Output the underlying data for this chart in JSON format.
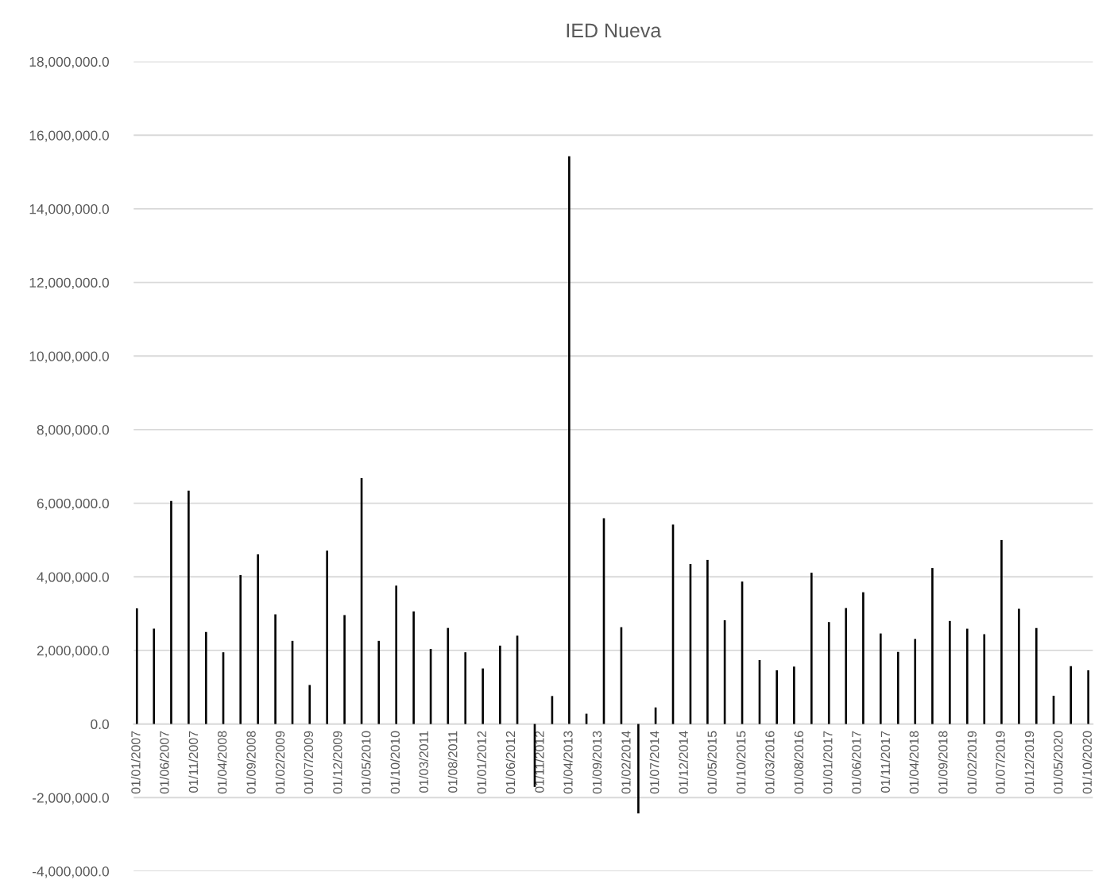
{
  "chart_data": {
    "type": "bar",
    "title": "IED Nueva",
    "x": [
      "2007-01",
      "2007-04",
      "2007-07",
      "2007-10",
      "2008-01",
      "2008-04",
      "2008-07",
      "2008-10",
      "2009-01",
      "2009-04",
      "2009-07",
      "2009-10",
      "2010-01",
      "2010-04",
      "2010-07",
      "2010-10",
      "2011-01",
      "2011-04",
      "2011-07",
      "2011-10",
      "2012-01",
      "2012-04",
      "2012-07",
      "2012-10",
      "2013-01",
      "2013-04",
      "2013-07",
      "2013-10",
      "2014-01",
      "2014-04",
      "2014-07",
      "2014-10",
      "2015-01",
      "2015-04",
      "2015-07",
      "2015-10",
      "2016-01",
      "2016-04",
      "2016-07",
      "2016-10",
      "2017-01",
      "2017-04",
      "2017-07",
      "2017-10",
      "2018-01",
      "2018-04",
      "2018-07",
      "2018-10",
      "2019-01",
      "2019-04",
      "2019-07",
      "2019-10",
      "2020-01",
      "2020-04",
      "2020-07",
      "2020-10"
    ],
    "series": [
      {
        "color": "#000000",
        "values": [
          3140000,
          2590000,
          6060000,
          6340000,
          2500000,
          1950000,
          4050000,
          4610000,
          2980000,
          2260000,
          1060000,
          4710000,
          2960000,
          6680000,
          2260000,
          3760000,
          3060000,
          2040000,
          2610000,
          1950000,
          1510000,
          2130000,
          2400000,
          -1710000,
          760000,
          15430000,
          280000,
          5590000,
          2630000,
          -2430000,
          450000,
          5420000,
          4350000,
          4460000,
          2820000,
          3870000,
          1740000,
          1460000,
          1560000,
          4110000,
          2770000,
          3150000,
          3580000,
          2460000,
          1960000,
          2310000,
          4240000,
          2800000,
          2590000,
          2440000,
          5000000,
          3130000,
          2610000,
          770000,
          1570000,
          1460000
        ]
      }
    ],
    "xlim": [
      "2006-12-15",
      "2020-10-25"
    ],
    "xticks": [
      {
        "value": "2007-01",
        "label": "01/01/2007"
      },
      {
        "value": "2007-06",
        "label": "01/06/2007"
      },
      {
        "value": "2007-11",
        "label": "01/11/2007"
      },
      {
        "value": "2008-04",
        "label": "01/04/2008"
      },
      {
        "value": "2008-09",
        "label": "01/09/2008"
      },
      {
        "value": "2009-02",
        "label": "01/02/2009"
      },
      {
        "value": "2009-07",
        "label": "01/07/2009"
      },
      {
        "value": "2009-12",
        "label": "01/12/2009"
      },
      {
        "value": "2010-05",
        "label": "01/05/2010"
      },
      {
        "value": "2010-10",
        "label": "01/10/2010"
      },
      {
        "value": "2011-03",
        "label": "01/03/2011"
      },
      {
        "value": "2011-08",
        "label": "01/08/2011"
      },
      {
        "value": "2012-01",
        "label": "01/01/2012"
      },
      {
        "value": "2012-06",
        "label": "01/06/2012"
      },
      {
        "value": "2012-11",
        "label": "01/11/2012"
      },
      {
        "value": "2013-04",
        "label": "01/04/2013"
      },
      {
        "value": "2013-09",
        "label": "01/09/2013"
      },
      {
        "value": "2014-02",
        "label": "01/02/2014"
      },
      {
        "value": "2014-07",
        "label": "01/07/2014"
      },
      {
        "value": "2014-12",
        "label": "01/12/2014"
      },
      {
        "value": "2015-05",
        "label": "01/05/2015"
      },
      {
        "value": "2015-10",
        "label": "01/10/2015"
      },
      {
        "value": "2016-03",
        "label": "01/03/2016"
      },
      {
        "value": "2016-08",
        "label": "01/08/2016"
      },
      {
        "value": "2017-01",
        "label": "01/01/2017"
      },
      {
        "value": "2017-06",
        "label": "01/06/2017"
      },
      {
        "value": "2017-11",
        "label": "01/11/2017"
      },
      {
        "value": "2018-04",
        "label": "01/04/2018"
      },
      {
        "value": "2018-09",
        "label": "01/09/2018"
      },
      {
        "value": "2019-02",
        "label": "01/02/2019"
      },
      {
        "value": "2019-07",
        "label": "01/07/2019"
      },
      {
        "value": "2019-12",
        "label": "01/12/2019"
      },
      {
        "value": "2020-05",
        "label": "01/05/2020"
      },
      {
        "value": "2020-10",
        "label": "01/10/2020"
      }
    ],
    "ylim": [
      -4000000,
      18000000
    ],
    "yticks": [
      {
        "value": -4000000,
        "label": "-4,000,000.0"
      },
      {
        "value": -2000000,
        "label": "-2,000,000.0"
      },
      {
        "value": 0,
        "label": "0.0"
      },
      {
        "value": 2000000,
        "label": "2,000,000.0"
      },
      {
        "value": 4000000,
        "label": "4,000,000.0"
      },
      {
        "value": 6000000,
        "label": "6,000,000.0"
      },
      {
        "value": 8000000,
        "label": "8,000,000.0"
      },
      {
        "value": 10000000,
        "label": "10,000,000.0"
      },
      {
        "value": 12000000,
        "label": "12,000,000.0"
      },
      {
        "value": 14000000,
        "label": "14,000,000.0"
      },
      {
        "value": 16000000,
        "label": "16,000,000.0"
      },
      {
        "value": 18000000,
        "label": "18,000,000.0"
      }
    ],
    "grid": "y"
  }
}
